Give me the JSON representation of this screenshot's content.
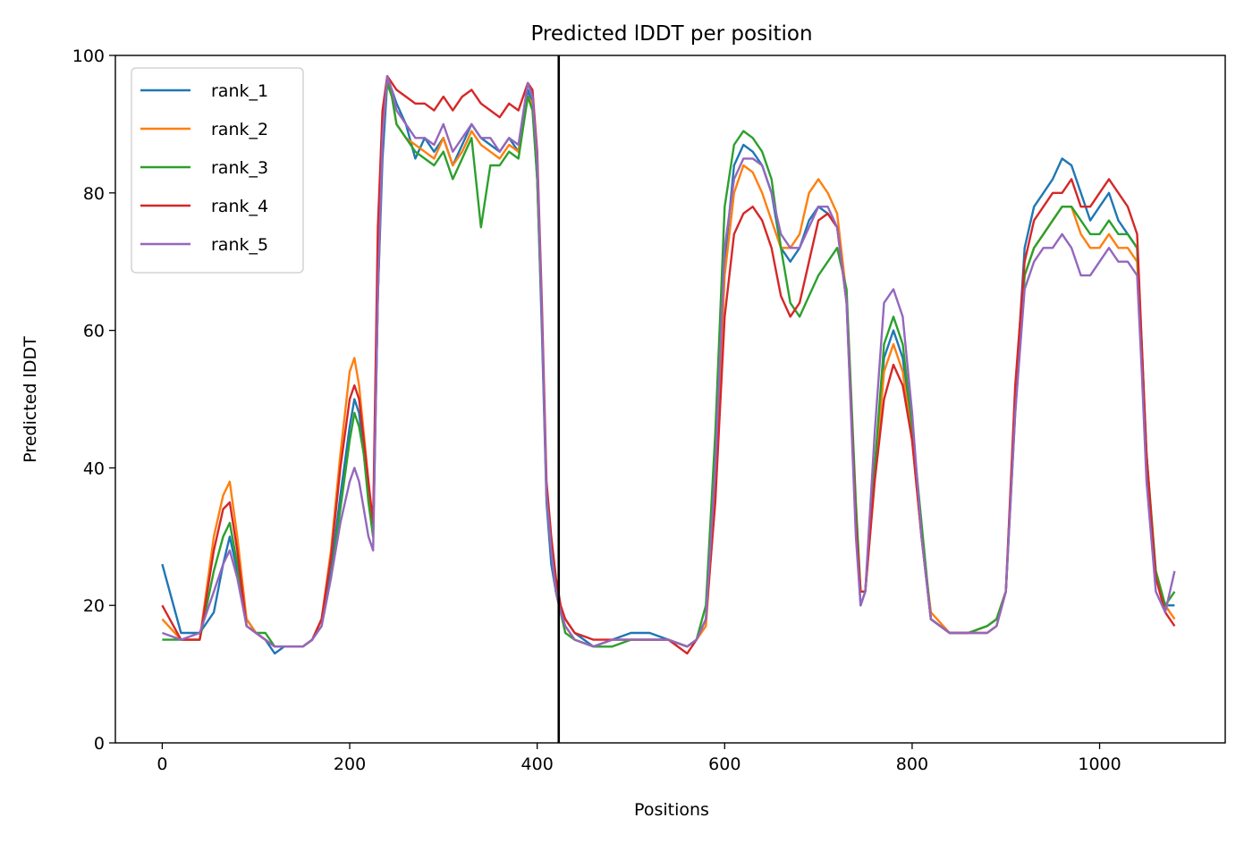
{
  "chart_data": {
    "type": "line",
    "title": "Predicted lDDT per position",
    "xlabel": "Positions",
    "ylabel": "Predicted lDDT",
    "xlim": [
      -50,
      1134
    ],
    "ylim": [
      0,
      100
    ],
    "xticks": [
      0,
      200,
      400,
      600,
      800,
      1000
    ],
    "yticks": [
      0,
      20,
      40,
      60,
      80,
      100
    ],
    "grid": false,
    "legend_position": "top-left",
    "vline": {
      "x": 423,
      "color": "#000000"
    },
    "x": [
      0,
      20,
      40,
      55,
      65,
      72,
      80,
      90,
      100,
      110,
      120,
      130,
      140,
      150,
      160,
      170,
      180,
      190,
      200,
      205,
      210,
      215,
      220,
      225,
      230,
      235,
      240,
      245,
      250,
      260,
      270,
      280,
      290,
      300,
      310,
      320,
      330,
      340,
      350,
      360,
      370,
      380,
      390,
      395,
      400,
      405,
      410,
      415,
      420,
      425,
      430,
      440,
      460,
      480,
      500,
      520,
      540,
      560,
      570,
      580,
      590,
      600,
      610,
      620,
      630,
      640,
      650,
      660,
      670,
      680,
      690,
      700,
      710,
      720,
      730,
      740,
      745,
      750,
      760,
      770,
      780,
      790,
      800,
      810,
      820,
      840,
      860,
      880,
      890,
      900,
      910,
      920,
      930,
      940,
      950,
      960,
      970,
      980,
      990,
      1000,
      1010,
      1020,
      1030,
      1040,
      1045,
      1050,
      1060,
      1070,
      1080
    ],
    "series": [
      {
        "name": "rank_1",
        "color": "#1f77b4",
        "values": [
          26,
          16,
          16,
          19,
          26,
          30,
          25,
          18,
          16,
          15,
          13,
          14,
          14,
          14,
          15,
          18,
          25,
          36,
          46,
          50,
          48,
          42,
          36,
          30,
          65,
          85,
          96,
          95,
          93,
          90,
          85,
          88,
          86,
          88,
          84,
          87,
          90,
          88,
          87,
          86,
          88,
          86,
          95,
          93,
          82,
          60,
          35,
          26,
          22,
          19,
          18,
          16,
          14,
          15,
          16,
          16,
          15,
          14,
          15,
          18,
          40,
          70,
          84,
          87,
          86,
          84,
          80,
          72,
          70,
          72,
          76,
          78,
          77,
          75,
          65,
          32,
          20,
          22,
          40,
          56,
          60,
          56,
          45,
          30,
          18,
          16,
          16,
          17,
          18,
          22,
          50,
          72,
          78,
          80,
          82,
          85,
          84,
          80,
          76,
          78,
          80,
          76,
          74,
          72,
          55,
          40,
          24,
          20,
          20
        ]
      },
      {
        "name": "rank_2",
        "color": "#ff7f0e",
        "values": [
          18,
          15,
          15,
          30,
          36,
          38,
          30,
          18,
          16,
          15,
          14,
          14,
          14,
          14,
          15,
          18,
          28,
          42,
          54,
          56,
          52,
          45,
          38,
          30,
          70,
          90,
          96,
          94,
          90,
          88,
          87,
          86,
          85,
          88,
          84,
          86,
          89,
          87,
          86,
          85,
          87,
          86,
          94,
          93,
          82,
          62,
          36,
          28,
          22,
          19,
          17,
          15,
          14,
          15,
          15,
          15,
          15,
          14,
          15,
          17,
          36,
          68,
          80,
          84,
          83,
          80,
          76,
          72,
          72,
          74,
          80,
          82,
          80,
          77,
          65,
          32,
          22,
          22,
          38,
          54,
          58,
          54,
          44,
          30,
          19,
          16,
          16,
          17,
          18,
          22,
          50,
          68,
          72,
          74,
          76,
          78,
          78,
          74,
          72,
          72,
          74,
          72,
          72,
          70,
          55,
          42,
          25,
          20,
          18
        ]
      },
      {
        "name": "rank_3",
        "color": "#2ca02c",
        "values": [
          15,
          15,
          15,
          25,
          30,
          32,
          26,
          17,
          16,
          16,
          14,
          14,
          14,
          14,
          15,
          17,
          24,
          34,
          44,
          48,
          46,
          42,
          35,
          30,
          65,
          88,
          96,
          94,
          90,
          88,
          86,
          85,
          84,
          86,
          82,
          85,
          88,
          75,
          84,
          84,
          86,
          85,
          94,
          92,
          82,
          62,
          36,
          28,
          22,
          19,
          16,
          15,
          14,
          14,
          15,
          15,
          15,
          14,
          15,
          20,
          45,
          78,
          87,
          89,
          88,
          86,
          82,
          72,
          64,
          62,
          65,
          68,
          70,
          72,
          66,
          35,
          22,
          22,
          40,
          58,
          62,
          58,
          46,
          32,
          18,
          16,
          16,
          17,
          18,
          22,
          48,
          68,
          72,
          74,
          76,
          78,
          78,
          76,
          74,
          74,
          76,
          74,
          74,
          72,
          58,
          42,
          25,
          20,
          22
        ]
      },
      {
        "name": "rank_4",
        "color": "#d62728",
        "values": [
          20,
          15,
          15,
          28,
          34,
          35,
          28,
          17,
          16,
          15,
          14,
          14,
          14,
          14,
          15,
          18,
          27,
          40,
          50,
          52,
          50,
          44,
          38,
          32,
          75,
          92,
          97,
          96,
          95,
          94,
          93,
          93,
          92,
          94,
          92,
          94,
          95,
          93,
          92,
          91,
          93,
          92,
          96,
          95,
          86,
          64,
          38,
          30,
          24,
          20,
          18,
          16,
          15,
          15,
          15,
          15,
          15,
          13,
          15,
          18,
          35,
          62,
          74,
          77,
          78,
          76,
          72,
          65,
          62,
          64,
          70,
          76,
          77,
          75,
          64,
          32,
          22,
          22,
          38,
          50,
          55,
          52,
          44,
          30,
          18,
          16,
          16,
          16,
          17,
          22,
          52,
          70,
          76,
          78,
          80,
          80,
          82,
          78,
          78,
          80,
          82,
          80,
          78,
          74,
          58,
          42,
          24,
          19,
          17
        ]
      },
      {
        "name": "rank_5",
        "color": "#9467bd",
        "values": [
          16,
          15,
          16,
          22,
          26,
          28,
          24,
          17,
          16,
          15,
          14,
          14,
          14,
          14,
          15,
          17,
          24,
          32,
          38,
          40,
          38,
          34,
          30,
          28,
          65,
          88,
          97,
          95,
          92,
          90,
          88,
          88,
          87,
          90,
          86,
          88,
          90,
          88,
          88,
          86,
          88,
          87,
          96,
          94,
          85,
          62,
          36,
          28,
          22,
          19,
          17,
          15,
          14,
          15,
          15,
          15,
          15,
          14,
          15,
          18,
          40,
          72,
          82,
          85,
          85,
          84,
          80,
          74,
          72,
          72,
          75,
          78,
          78,
          75,
          64,
          30,
          20,
          22,
          45,
          64,
          66,
          62,
          48,
          30,
          18,
          16,
          16,
          16,
          17,
          22,
          48,
          66,
          70,
          72,
          72,
          74,
          72,
          68,
          68,
          70,
          72,
          70,
          70,
          68,
          54,
          38,
          22,
          19,
          25
        ]
      }
    ]
  }
}
